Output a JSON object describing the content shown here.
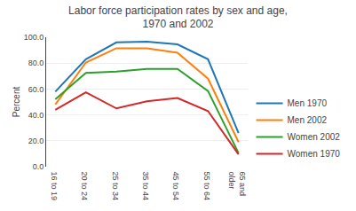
{
  "chart_data": {
    "type": "line",
    "title": "Labor force participation rates by sex and age,\n1970 and 2002",
    "ylabel": "Percent",
    "categories": [
      "16 to 19",
      "20 to 24",
      "25 to 34",
      "35 to 44",
      "45 to 54",
      "55 to 64",
      "65 and\nolder"
    ],
    "series": [
      {
        "name": "Men 1970",
        "values": [
          58.0,
          83.0,
          96.0,
          96.5,
          94.5,
          83.0,
          26.0
        ]
      },
      {
        "name": "Men 2002",
        "values": [
          48.0,
          80.5,
          91.5,
          91.5,
          88.0,
          68.0,
          19.0
        ]
      },
      {
        "name": "Women 2002",
        "values": [
          52.0,
          72.5,
          73.5,
          75.5,
          75.5,
          58.5,
          10.5
        ]
      },
      {
        "name": "Women 1970",
        "values": [
          44.0,
          57.5,
          45.0,
          50.5,
          53.0,
          43.0,
          9.5
        ]
      }
    ],
    "ylim": [
      0,
      100
    ],
    "yticks": [
      {
        "value": 0,
        "label": "0.0"
      },
      {
        "value": 20,
        "label": "20.0"
      },
      {
        "value": 40,
        "label": "40.0"
      },
      {
        "value": 60,
        "label": "60.0"
      },
      {
        "value": 80,
        "label": "80.0"
      },
      {
        "value": 100,
        "label": "100.0"
      }
    ],
    "grid": true,
    "legend": "lower right"
  }
}
